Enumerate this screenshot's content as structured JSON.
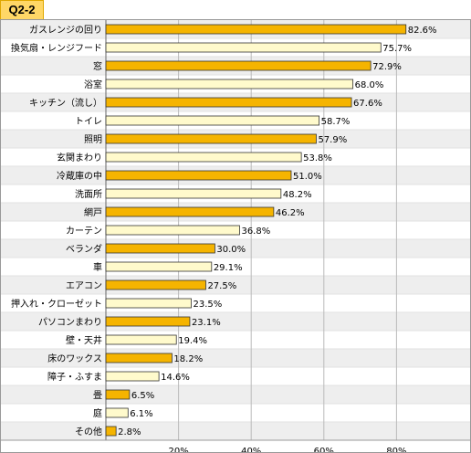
{
  "tab_label": "Q2-2",
  "colors": {
    "bar_primary": "#f5b400",
    "bar_secondary": "#fffacc",
    "bar_stroke": "#333333",
    "stripe": "#eeeeee",
    "grid": "#bbbbbb",
    "tab": "#ffd766"
  },
  "chart_data": {
    "type": "bar",
    "orientation": "horizontal",
    "title": "",
    "xlabel": "",
    "ylabel": "",
    "xlim": [
      0,
      100
    ],
    "ticks": [
      "20%",
      "40%",
      "60%",
      "80%"
    ],
    "tick_values": [
      20,
      40,
      60,
      80
    ],
    "grid": true,
    "value_suffix": "%",
    "categories": [
      "ガスレンジの回り",
      "換気扇・レンジフード",
      "窓",
      "浴室",
      "キッチン（流し）",
      "トイレ",
      "照明",
      "玄関まわり",
      "冷蔵庫の中",
      "洗面所",
      "網戸",
      "カーテン",
      "ベランダ",
      "車",
      "エアコン",
      "押入れ・クローゼット",
      "パソコンまわり",
      "壁・天井",
      "床のワックス",
      "障子・ふすま",
      "畳",
      "庭",
      "その他"
    ],
    "values": [
      82.6,
      75.7,
      72.9,
      68.0,
      67.6,
      58.7,
      57.9,
      53.8,
      51.0,
      48.2,
      46.2,
      36.8,
      30.0,
      29.1,
      27.5,
      23.5,
      23.1,
      19.4,
      18.2,
      14.6,
      6.5,
      6.1,
      2.8
    ],
    "value_labels": [
      "82.6%",
      "75.7%",
      "72.9%",
      "68.0%",
      "67.6%",
      "58.7%",
      "57.9%",
      "53.8%",
      "51.0%",
      "48.2%",
      "46.2%",
      "36.8%",
      "30.0%",
      "29.1%",
      "27.5%",
      "23.5%",
      "23.1%",
      "19.4%",
      "18.2%",
      "14.6%",
      "6.5%",
      "6.1%",
      "2.8%"
    ]
  }
}
